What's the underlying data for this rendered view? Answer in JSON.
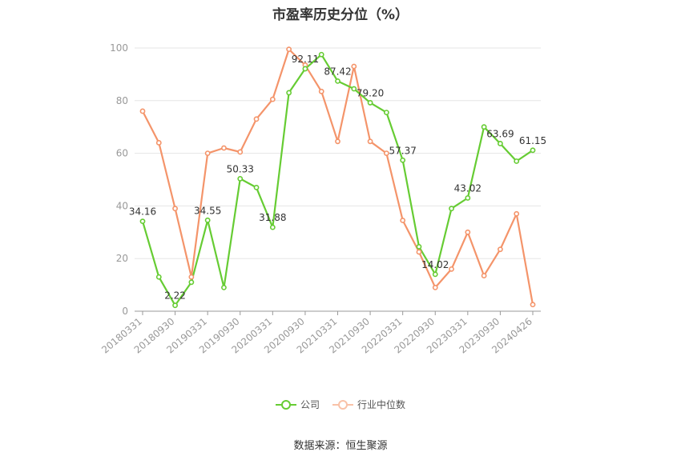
{
  "chart_data": {
    "type": "line",
    "title": "市盈率历史分位（%）",
    "source": "数据来源：恒生聚源",
    "ylim": [
      0,
      100
    ],
    "yticks": [
      0,
      20,
      40,
      60,
      80,
      100
    ],
    "grid": true,
    "legend_position": "bottom",
    "x": [
      "20180331",
      "20180630",
      "20180930",
      "20181231",
      "20190331",
      "20190630",
      "20190930",
      "20191231",
      "20200331",
      "20200630",
      "20200930",
      "20201231",
      "20210331",
      "20210630",
      "20210930",
      "20211231",
      "20220331",
      "20220630",
      "20220930",
      "20221231",
      "20230331",
      "20230630",
      "20230930",
      "20231231",
      "20240426"
    ],
    "xtick_labels": [
      "20180331",
      "20180930",
      "20190331",
      "20190930",
      "20200331",
      "20200930",
      "20210331",
      "20210930",
      "20220331",
      "20220930",
      "20230331",
      "20230930",
      "20240426"
    ],
    "series": [
      {
        "name": "公司",
        "color": "#66cc33",
        "values": [
          34.16,
          13,
          2.22,
          11,
          34.55,
          9,
          50.33,
          47,
          31.88,
          83,
          92.11,
          97.5,
          87.42,
          84.5,
          79.2,
          75.5,
          57.37,
          24.5,
          14.02,
          39,
          43.02,
          70,
          63.69,
          57,
          61.15
        ],
        "labels": [
          "34.16",
          "",
          "2.22",
          "",
          "34.55",
          "",
          "50.33",
          "",
          "31.88",
          "",
          "92.11",
          "",
          "87.42",
          "",
          "79.20",
          "",
          "57.37",
          "",
          "14.02",
          "",
          "43.02",
          "",
          "63.69",
          "",
          "61.15"
        ]
      },
      {
        "name": "行业中位数",
        "color": "#f4946a",
        "values": [
          76,
          64,
          39,
          13,
          60,
          62,
          60.5,
          73,
          80.5,
          99.5,
          93.5,
          83.5,
          64.5,
          93,
          64.5,
          60,
          34.5,
          22.5,
          9,
          16,
          30,
          13.5,
          23.5,
          37,
          2.5
        ]
      }
    ]
  }
}
